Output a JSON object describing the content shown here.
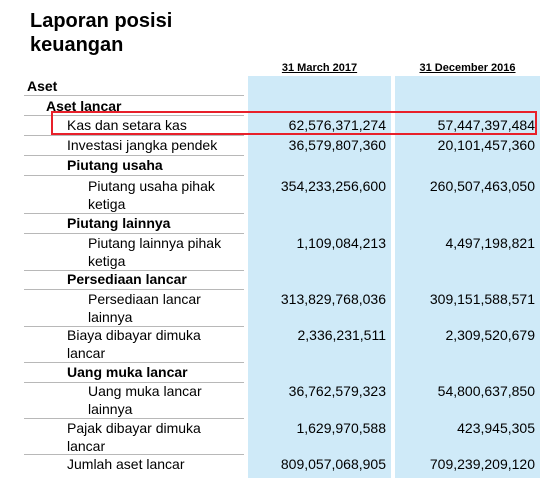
{
  "title_line1": "Laporan posisi",
  "title_line2": "keuangan",
  "columns": [
    "31 March 2017",
    "31 December 2016"
  ],
  "sections": {
    "aset": "Aset",
    "aset_lancar": "Aset lancar"
  },
  "rows": [
    {
      "label": "Kas dan setara kas",
      "v1": "62,576,371,274",
      "v2": "57,447,397,484"
    },
    {
      "label": "Investasi jangka pendek",
      "v1": "36,579,807,360",
      "v2": "20,101,457,360"
    },
    {
      "label": "Piutang usaha"
    },
    {
      "label1": "Piutang usaha pihak",
      "label2": "ketiga",
      "v1": "354,233,256,600",
      "v2": "260,507,463,050"
    },
    {
      "label": "Piutang lainnya"
    },
    {
      "label1": "Piutang lainnya pihak",
      "label2": "ketiga",
      "v1": "1,109,084,213",
      "v2": "4,497,198,821"
    },
    {
      "label": "Persediaan lancar"
    },
    {
      "label1": "Persediaan lancar",
      "label2": "lainnya",
      "v1": "313,829,768,036",
      "v2": "309,151,588,571"
    },
    {
      "label1": "Biaya dibayar dimuka",
      "label2": "lancar",
      "v1": "2,336,231,511",
      "v2": "2,309,520,679"
    },
    {
      "label": "Uang muka lancar"
    },
    {
      "label1": "Uang muka lancar",
      "label2": "lainnya",
      "v1": "36,762,579,323",
      "v2": "54,800,637,850"
    },
    {
      "label1": "Pajak dibayar dimuka",
      "label2": "lancar",
      "v1": "1,629,970,588",
      "v2": "423,945,305"
    },
    {
      "label": "Jumlah aset lancar",
      "v1": "809,057,068,905",
      "v2": "709,239,209,120"
    }
  ]
}
